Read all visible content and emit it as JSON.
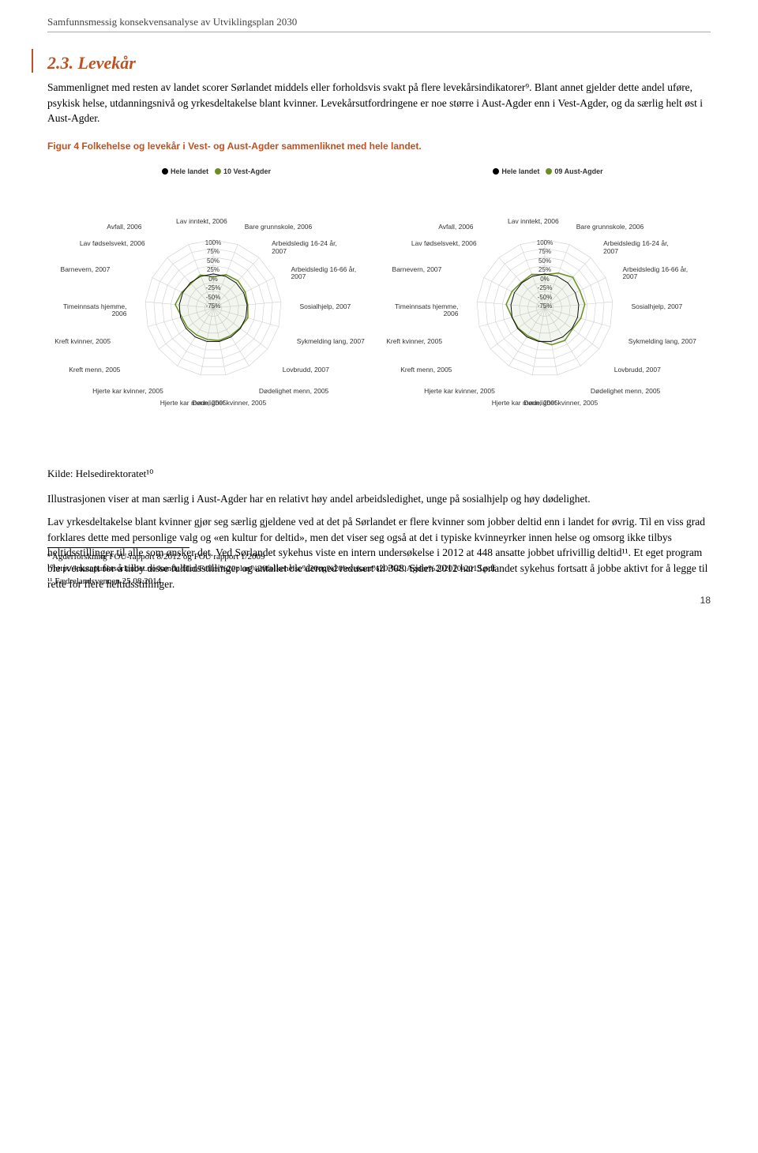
{
  "header": {
    "running_title": "Samfunnsmessig konsekvensanalyse av Utviklingsplan 2030"
  },
  "section": {
    "heading": "2.3. Levekår",
    "paragraph1": "Sammenlignet med resten av landet scorer Sørlandet middels eller forholdsvis svakt på flere levekårsindikatorer⁹. Blant annet gjelder dette andel uføre, psykisk helse, utdanningsnivå og yrkesdeltakelse blant kvinner. Levekårsutfordringene er noe større i Aust-Agder enn i Vest-Agder, og da særlig helt øst i Aust-Agder.",
    "figure_caption": "Figur 4 Folkehelse og levekår i Vest- og Aust-Agder sammenliknet med hele landet.",
    "source": "Kilde: Helsedirektoratet¹⁰",
    "paragraph2": "Illustrasjonen viser at man særlig i Aust-Agder har en relativt høy andel arbeidsledighet, unge på sosialhjelp og høy dødelighet.",
    "paragraph3": "Lav yrkesdeltakelse blant kvinner gjør seg særlig gjeldene ved at det på Sørlandet er flere kvinner som jobber deltid enn i landet for øvrig. Til en viss grad forklares dette med personlige valg og «en kultur for deltid», men det viser seg også at det i typiske kvinneyrker innen helse og omsorg ikke tilbys heltidsstillinger til alle som ønsker det.  Ved Sørlandet sykehus viste en intern undersøkelse i 2012 at 448 ansatte jobbet ufrivillig deltid¹¹. Et eget program ble iverksatt for å tilby disse fulltidsstillinger og antallet ble dermed redusert til 308. Siden 2012 har Sørlandet sykehus fortsatt å jobbe aktivt for å legge til rette for flere heltidsstillinger."
  },
  "charts": {
    "type": "radar",
    "axes": [
      "Lav inntekt, 2006",
      "Bare grunnskole, 2006",
      "Arbeidsledig 16-24 år, 2007",
      "Arbeidsledig 16-66 år, 2007",
      "Sosialhjelp, 2007",
      "Sykmelding lang, 2007",
      "Lovbrudd, 2007",
      "Dødelighet menn, 2005",
      "Dødelighet kvinner, 2005",
      "Hjerte kar menn, 2005",
      "Hjerte kar kvinner, 2005",
      "Kreft menn, 2005",
      "Kreft kvinner, 2005",
      "Timeinnsats hjemme, 2006",
      "Barnevern, 2007",
      "Lav fødselsvekt, 2006",
      "Avfall, 2006"
    ],
    "scale_labels": [
      "100%",
      "75%",
      "50%",
      "25%",
      "0%",
      "-25%",
      "-50%",
      "-75%"
    ],
    "scale_min": -100,
    "scale_max": 100,
    "grid_color": "#cccccc",
    "axis_line_color": "#cccccc",
    "background_color": "#ffffff",
    "font_family": "Arial",
    "label_fontsize": 8.5,
    "left": {
      "legend": [
        {
          "label": "Hele landet",
          "color": "#000000"
        },
        {
          "label": "10 Vest-Agder",
          "color": "#6b8e23"
        }
      ],
      "series_hele_landet": {
        "color": "#000000",
        "fill_opacity": 0.0,
        "line_width": 1,
        "values": [
          0,
          0,
          0,
          0,
          0,
          0,
          0,
          0,
          0,
          0,
          0,
          0,
          0,
          0,
          0,
          0,
          0
        ]
      },
      "series_region": {
        "color": "#6b8e23",
        "fill_opacity": 0.08,
        "line_width": 1.6,
        "values": [
          -8,
          5,
          8,
          5,
          2,
          6,
          -2,
          -4,
          -3,
          -6,
          -7,
          -5,
          -4,
          12,
          3,
          -3,
          4
        ]
      }
    },
    "right": {
      "legend": [
        {
          "label": "Hele landet",
          "color": "#000000"
        },
        {
          "label": "09 Aust-Agder",
          "color": "#6b8e23"
        }
      ],
      "series_hele_landet": {
        "color": "#000000",
        "fill_opacity": 0.0,
        "line_width": 1,
        "values": [
          0,
          0,
          0,
          0,
          0,
          0,
          0,
          0,
          0,
          0,
          0,
          0,
          0,
          0,
          0,
          0,
          0
        ]
      },
      "series_region": {
        "color": "#6b8e23",
        "fill_opacity": 0.08,
        "line_width": 1.6,
        "values": [
          -2,
          10,
          22,
          15,
          18,
          10,
          2,
          12,
          10,
          -2,
          -4,
          -2,
          0,
          14,
          8,
          2,
          6
        ]
      }
    }
  },
  "footnotes": {
    "fn9": "⁹ Agderforskning FOU-rapport 8/2012 og FOU rapport 1/2009",
    "fn10": "¹⁰http://knutepunktsorlandet.no/kunde/filer/Felles%20plan%20folkehelse%20og%20levekaar%20i%20Agder%202010-2013.pdf",
    "fn11": "¹¹ Fædrelandsvennen 25.08.2014"
  },
  "page_number": "18"
}
